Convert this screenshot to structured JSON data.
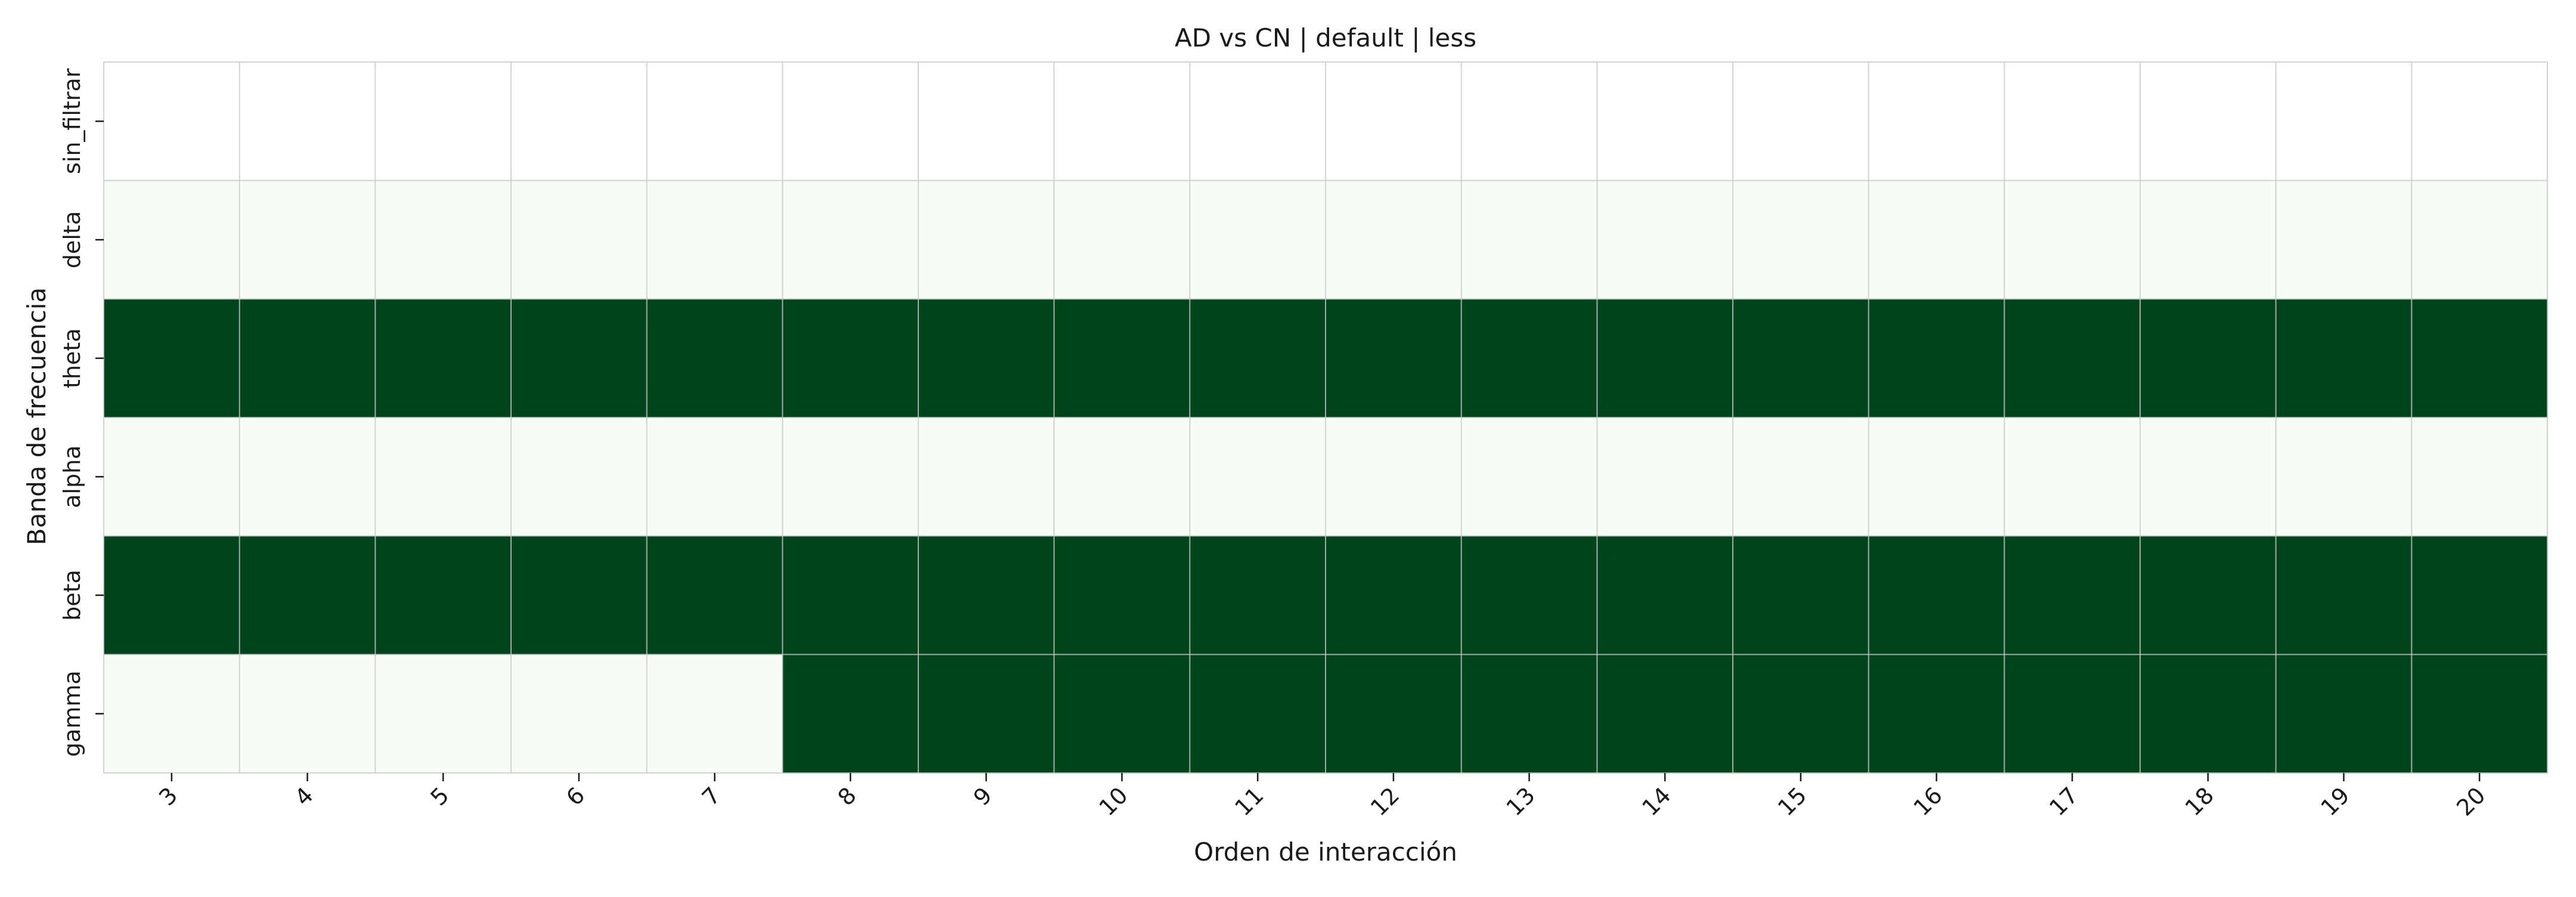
{
  "chart_data": {
    "type": "heatmap",
    "title": "AD vs CN | default | less",
    "xlabel": "Orden de interacción",
    "ylabel": "Banda de frecuencia",
    "x": [
      3,
      4,
      5,
      6,
      7,
      8,
      9,
      10,
      11,
      12,
      13,
      14,
      15,
      16,
      17,
      18,
      19,
      20
    ],
    "x_tick_labels": [
      "3",
      "4",
      "5",
      "6",
      "7",
      "8",
      "9",
      "10",
      "11",
      "12",
      "13",
      "14",
      "15",
      "16",
      "17",
      "18",
      "19",
      "20"
    ],
    "y_tick_labels": [
      "sin_filtrar",
      "delta",
      "theta",
      "alpha",
      "beta",
      "gamma"
    ],
    "values": [
      [
        0,
        0,
        0,
        0,
        0,
        0,
        0,
        0,
        0,
        0,
        0,
        0,
        0,
        0,
        0,
        0,
        0,
        0
      ],
      [
        1,
        1,
        1,
        1,
        1,
        1,
        1,
        1,
        1,
        1,
        1,
        1,
        1,
        1,
        1,
        1,
        1,
        1
      ],
      [
        6,
        6,
        6,
        6,
        6,
        6,
        6,
        6,
        6,
        6,
        6,
        6,
        6,
        6,
        6,
        6,
        6,
        6
      ],
      [
        1,
        1,
        1,
        1,
        1,
        1,
        1,
        1,
        1,
        1,
        1,
        1,
        1,
        1,
        1,
        1,
        1,
        1
      ],
      [
        6,
        6,
        6,
        6,
        6,
        6,
        6,
        6,
        6,
        6,
        6,
        6,
        6,
        6,
        6,
        6,
        6,
        6
      ],
      [
        1,
        1,
        1,
        1,
        1,
        6,
        6,
        6,
        6,
        6,
        6,
        6,
        6,
        6,
        6,
        6,
        6,
        6
      ]
    ],
    "colormap": {
      "0": "#ffffff",
      "1": "#f7fcf5",
      "6": "#00441b"
    },
    "grid_line_color": "#c8c8c8",
    "grid": true,
    "colorbar": false,
    "x_tick_rotation_deg": -45
  }
}
